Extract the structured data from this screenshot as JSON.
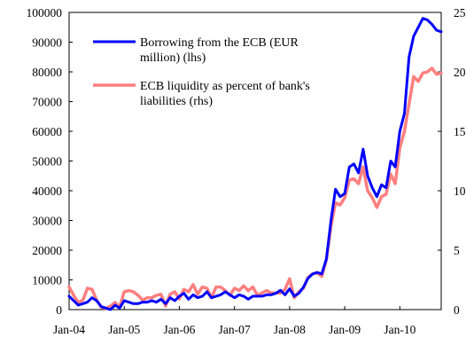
{
  "chart_data": {
    "type": "line",
    "x_tick_labels": [
      "Jan-04",
      "Jan-05",
      "Jan-06",
      "Jan-07",
      "Jan-08",
      "Jan-09",
      "Jan-10"
    ],
    "x_range": [
      "2004-01",
      "2010-10"
    ],
    "y_left": {
      "range": [
        0,
        100000
      ],
      "ticks": [
        "0",
        "10000",
        "20000",
        "30000",
        "40000",
        "50000",
        "60000",
        "70000",
        "80000",
        "90000",
        "100000"
      ]
    },
    "y_right": {
      "range": [
        0,
        25
      ],
      "ticks": [
        "0",
        "5",
        "10",
        "15",
        "20",
        "25"
      ]
    },
    "legend_placement": "top-left inside plot",
    "grid": false,
    "series": [
      {
        "name": "Borrowing from the ECB (EUR million) (lhs)",
        "name_lines": [
          "Borrowing from the ECB (EUR",
          "million) (lhs)"
        ],
        "axis": "left",
        "color": "#0000ff",
        "x": [
          "2004-01",
          "2004-02",
          "2004-03",
          "2004-04",
          "2004-05",
          "2004-06",
          "2004-07",
          "2004-08",
          "2004-09",
          "2004-10",
          "2004-11",
          "2004-12",
          "2005-01",
          "2005-02",
          "2005-03",
          "2005-04",
          "2005-05",
          "2005-06",
          "2005-07",
          "2005-08",
          "2005-09",
          "2005-10",
          "2005-11",
          "2005-12",
          "2006-01",
          "2006-02",
          "2006-03",
          "2006-04",
          "2006-05",
          "2006-06",
          "2006-07",
          "2006-08",
          "2006-09",
          "2006-10",
          "2006-11",
          "2006-12",
          "2007-01",
          "2007-02",
          "2007-03",
          "2007-04",
          "2007-05",
          "2007-06",
          "2007-07",
          "2007-08",
          "2007-09",
          "2007-10",
          "2007-11",
          "2007-12",
          "2008-01",
          "2008-02",
          "2008-03",
          "2008-04",
          "2008-05",
          "2008-06",
          "2008-07",
          "2008-08",
          "2008-09",
          "2008-10",
          "2008-11",
          "2008-12",
          "2009-01",
          "2009-02",
          "2009-03",
          "2009-04",
          "2009-05",
          "2009-06",
          "2009-07",
          "2009-08",
          "2009-09",
          "2009-10",
          "2009-11",
          "2009-12",
          "2010-01",
          "2010-02",
          "2010-03",
          "2010-04",
          "2010-05",
          "2010-06",
          "2010-07",
          "2010-08",
          "2010-09",
          "2010-10"
        ],
        "values": [
          4500,
          3000,
          1500,
          2000,
          2500,
          4000,
          3000,
          1000,
          500,
          0,
          1500,
          500,
          3000,
          2500,
          2000,
          2000,
          2500,
          2500,
          3000,
          2500,
          3500,
          2000,
          4000,
          3000,
          4500,
          5500,
          3500,
          5000,
          4000,
          4500,
          6000,
          4000,
          4500,
          5000,
          6000,
          5000,
          4000,
          5000,
          4500,
          3500,
          4500,
          4500,
          4500,
          5000,
          5000,
          5500,
          6500,
          5000,
          7000,
          4500,
          5500,
          7500,
          10500,
          12000,
          12500,
          12000,
          17000,
          30000,
          40500,
          38000,
          39000,
          48000,
          49000,
          46000,
          54000,
          45000,
          41000,
          38000,
          42000,
          41000,
          50000,
          48000,
          60000,
          66000,
          85000,
          92000,
          95000,
          98000,
          97500,
          96000,
          94000,
          93500
        ]
      },
      {
        "name": "ECB liquidity as percent of bank's liabilities (rhs)",
        "name_lines": [
          "ECB liquidity as percent of bank's",
          "liabilities (rhs)"
        ],
        "axis": "right",
        "color": "#ff7f7f",
        "x": [
          "2004-01",
          "2004-02",
          "2004-03",
          "2004-04",
          "2004-05",
          "2004-06",
          "2004-07",
          "2004-08",
          "2004-09",
          "2004-10",
          "2004-11",
          "2004-12",
          "2005-01",
          "2005-02",
          "2005-03",
          "2005-04",
          "2005-05",
          "2005-06",
          "2005-07",
          "2005-08",
          "2005-09",
          "2005-10",
          "2005-11",
          "2005-12",
          "2006-01",
          "2006-02",
          "2006-03",
          "2006-04",
          "2006-05",
          "2006-06",
          "2006-07",
          "2006-08",
          "2006-09",
          "2006-10",
          "2006-11",
          "2006-12",
          "2007-01",
          "2007-02",
          "2007-03",
          "2007-04",
          "2007-05",
          "2007-06",
          "2007-07",
          "2007-08",
          "2007-09",
          "2007-10",
          "2007-11",
          "2007-12",
          "2008-01",
          "2008-02",
          "2008-03",
          "2008-04",
          "2008-05",
          "2008-06",
          "2008-07",
          "2008-08",
          "2008-09",
          "2008-10",
          "2008-11",
          "2008-12",
          "2009-01",
          "2009-02",
          "2009-03",
          "2009-04",
          "2009-05",
          "2009-06",
          "2009-07",
          "2009-08",
          "2009-09",
          "2009-10",
          "2009-11",
          "2009-12",
          "2010-01",
          "2010-02",
          "2010-03",
          "2010-04",
          "2010-05",
          "2010-06",
          "2010-07",
          "2010-08",
          "2010-09",
          "2010-10"
        ],
        "values": [
          1.9,
          1.2,
          0.6,
          0.8,
          1.8,
          1.7,
          0.8,
          0.2,
          0.1,
          0.3,
          0.6,
          0.2,
          1.5,
          1.6,
          1.5,
          1.2,
          0.8,
          1.0,
          1.0,
          1.2,
          1.3,
          0.3,
          1.3,
          1.5,
          0.9,
          1.7,
          1.5,
          2.1,
          1.3,
          1.9,
          1.8,
          1.0,
          1.9,
          1.9,
          1.6,
          1.2,
          1.8,
          1.6,
          2.0,
          1.6,
          1.9,
          1.2,
          1.4,
          1.6,
          1.4,
          1.4,
          1.4,
          1.7,
          2.6,
          1.0,
          1.5,
          1.8,
          2.7,
          3.0,
          3.1,
          2.8,
          4.2,
          7.0,
          9.0,
          8.8,
          9.4,
          10.9,
          11.0,
          10.6,
          12.0,
          10.0,
          9.4,
          8.6,
          9.5,
          9.7,
          11.4,
          10.6,
          13.6,
          15.0,
          17.3,
          19.6,
          19.2,
          19.9,
          20.0,
          20.3,
          19.8,
          19.9
        ]
      }
    ]
  }
}
